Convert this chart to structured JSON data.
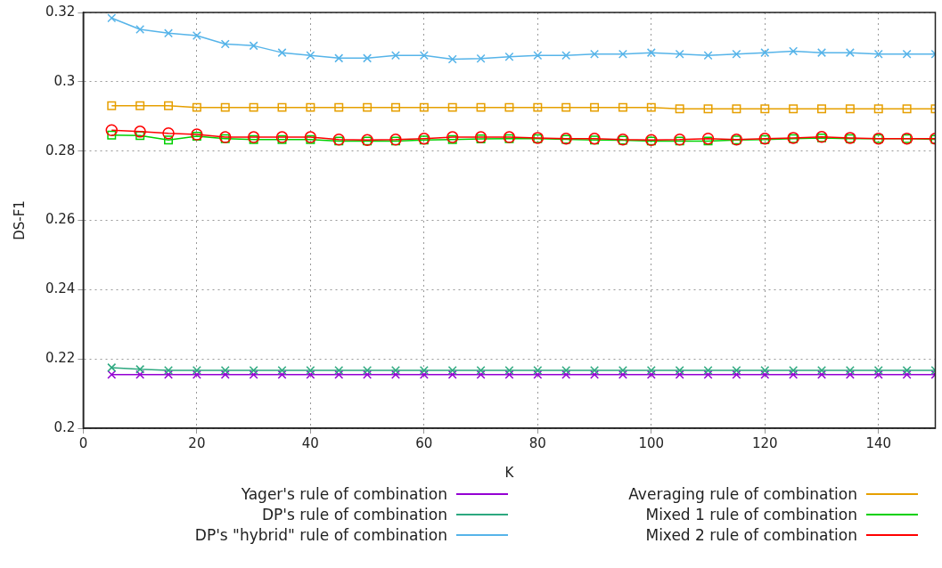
{
  "chart_data": {
    "type": "line",
    "xlabel": "K",
    "ylabel": "DS-F1",
    "x": [
      5,
      10,
      15,
      20,
      25,
      30,
      35,
      40,
      45,
      50,
      55,
      60,
      65,
      70,
      75,
      80,
      85,
      90,
      95,
      100,
      105,
      110,
      115,
      120,
      125,
      130,
      135,
      140,
      145,
      150
    ],
    "xlim": [
      0,
      150
    ],
    "xticks": [
      0,
      20,
      40,
      60,
      80,
      100,
      120,
      140
    ],
    "ylim": [
      0.2,
      0.32
    ],
    "yticks": [
      0.2,
      0.22,
      0.24,
      0.26,
      0.28,
      0.3,
      0.32
    ],
    "grid": true,
    "legend": "bottom",
    "series": [
      {
        "name": "Yager's rule of combination",
        "color": "#9400d3",
        "marker": "cross",
        "values": [
          0.2155,
          0.2155,
          0.2155,
          0.2155,
          0.2155,
          0.2155,
          0.2155,
          0.2155,
          0.2155,
          0.2155,
          0.2155,
          0.2155,
          0.2155,
          0.2155,
          0.2155,
          0.2155,
          0.2155,
          0.2155,
          0.2155,
          0.2155,
          0.2155,
          0.2155,
          0.2155,
          0.2155,
          0.2155,
          0.2155,
          0.2155,
          0.2155,
          0.2155,
          0.2155
        ]
      },
      {
        "name": "DP's rule of combination",
        "color": "#2ca87f",
        "marker": "cross",
        "values": [
          0.2175,
          0.217,
          0.2167,
          0.2167,
          0.2167,
          0.2167,
          0.2167,
          0.2167,
          0.2167,
          0.2167,
          0.2167,
          0.2167,
          0.2167,
          0.2167,
          0.2167,
          0.2167,
          0.2167,
          0.2167,
          0.2167,
          0.2167,
          0.2167,
          0.2167,
          0.2167,
          0.2167,
          0.2167,
          0.2167,
          0.2167,
          0.2167,
          0.2167,
          0.2167
        ]
      },
      {
        "name": "DP's \"hybrid\" rule of combination",
        "color": "#56b4e9",
        "marker": "cross",
        "values": [
          0.3184,
          0.3151,
          0.314,
          0.3133,
          0.3109,
          0.3104,
          0.3084,
          0.3076,
          0.3068,
          0.3068,
          0.3076,
          0.3076,
          0.3065,
          0.3067,
          0.3072,
          0.3076,
          0.3076,
          0.308,
          0.308,
          0.3084,
          0.308,
          0.3076,
          0.308,
          0.3084,
          0.3088,
          0.3084,
          0.3084,
          0.308,
          0.308,
          0.308
        ]
      },
      {
        "name": "Averaging rule of combination",
        "color": "#e69f00",
        "marker": "square",
        "values": [
          0.2931,
          0.2931,
          0.2931,
          0.2926,
          0.2926,
          0.2926,
          0.2926,
          0.2926,
          0.2926,
          0.2926,
          0.2926,
          0.2926,
          0.2926,
          0.2926,
          0.2926,
          0.2926,
          0.2926,
          0.2926,
          0.2926,
          0.2926,
          0.2922,
          0.2922,
          0.2922,
          0.2922,
          0.2922,
          0.2922,
          0.2922,
          0.2922,
          0.2922,
          0.2922
        ]
      },
      {
        "name": "Mixed 1 rule of combination",
        "color": "#00d000",
        "marker": "square",
        "values": [
          0.2846,
          0.2845,
          0.2832,
          0.2843,
          0.2836,
          0.2833,
          0.2833,
          0.2833,
          0.2829,
          0.2829,
          0.2829,
          0.2832,
          0.2833,
          0.2835,
          0.2836,
          0.2836,
          0.2834,
          0.2832,
          0.2831,
          0.2829,
          0.2829,
          0.2829,
          0.2832,
          0.2833,
          0.2836,
          0.2838,
          0.2836,
          0.2836,
          0.2836,
          0.2834
        ]
      },
      {
        "name": "Mixed 2 rule of combination",
        "color": "#ff0000",
        "marker": "circle",
        "values": [
          0.286,
          0.2856,
          0.2851,
          0.2848,
          0.284,
          0.284,
          0.284,
          0.284,
          0.2833,
          0.2832,
          0.2833,
          0.2836,
          0.284,
          0.284,
          0.284,
          0.2838,
          0.2836,
          0.2836,
          0.2833,
          0.2832,
          0.2833,
          0.2836,
          0.2833,
          0.2836,
          0.2838,
          0.2841,
          0.2838,
          0.2836,
          0.2836,
          0.2836
        ]
      }
    ]
  }
}
